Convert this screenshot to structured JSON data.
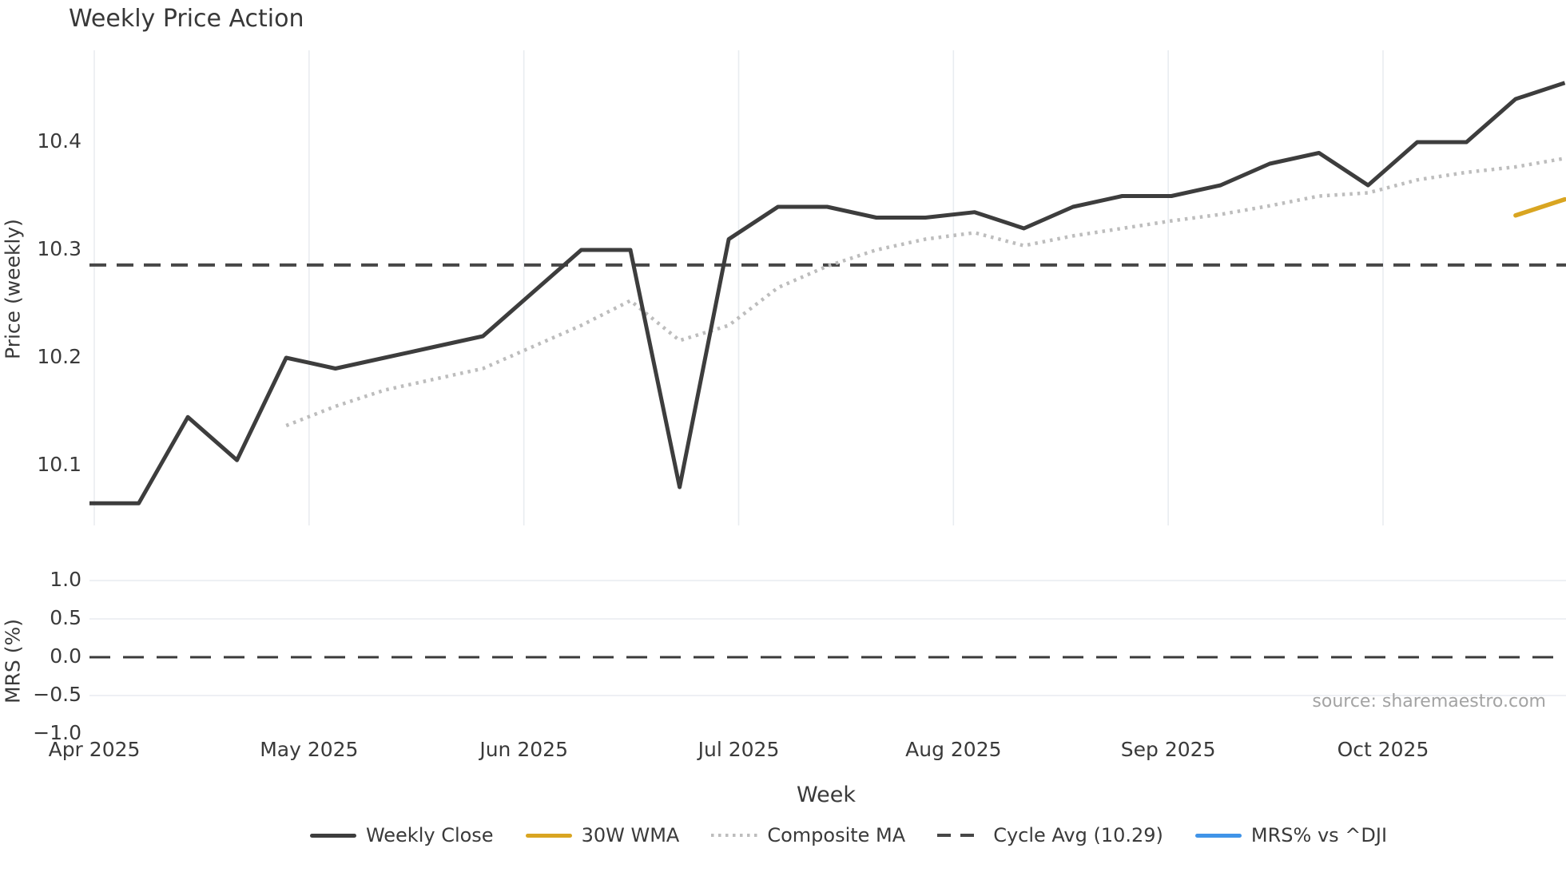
{
  "title": "Weekly Price Action",
  "source": "source: sharemaestro.com",
  "x_axis": {
    "label": "Week",
    "tick_labels": [
      "Apr 2025",
      "May 2025",
      "Jun 2025",
      "Jul 2025",
      "Aug 2025",
      "Sep 2025",
      "Oct 2025"
    ]
  },
  "price_panel": {
    "ylabel": "Price (weekly)",
    "ticks": [
      {
        "label": "10.4",
        "value": 10.4
      },
      {
        "label": "10.3",
        "value": 10.3
      },
      {
        "label": "10.2",
        "value": 10.2
      },
      {
        "label": "10.1",
        "value": 10.1
      }
    ]
  },
  "mrs_panel": {
    "ylabel": "MRS (%)",
    "ticks": [
      {
        "label": "1.0",
        "value": 1.0
      },
      {
        "label": "0.5",
        "value": 0.5
      },
      {
        "label": "0.0",
        "value": 0.0
      },
      {
        "label": "−0.5",
        "value": -0.5
      },
      {
        "label": "−1.0",
        "value": -1.0
      }
    ]
  },
  "legend": {
    "items": [
      {
        "label": "Weekly Close",
        "style": "solid",
        "color": "#3d3d3d"
      },
      {
        "label": "30W WMA",
        "style": "solid",
        "color": "#d9a521"
      },
      {
        "label": "Composite MA",
        "style": "dotted",
        "color": "#bdbdbd"
      },
      {
        "label": "Cycle Avg (10.29)",
        "style": "dashed",
        "color": "#474747"
      },
      {
        "label": "MRS% vs ^DJI",
        "style": "solid",
        "color": "#4094e8"
      }
    ]
  },
  "colors": {
    "weekly_close": "#3d3d3d",
    "wma_30w": "#d9a521",
    "composite_ma": "#bdbdbd",
    "cycle_avg": "#474747",
    "mrs_line": "#4094e8",
    "gridline": "#e9ecf0",
    "zero_dash": "#3a3a3a"
  },
  "chart_data": [
    {
      "type": "line",
      "panel": "price",
      "title": "Weekly Price Action",
      "xlabel": "Week",
      "ylabel": "Price (weekly)",
      "x_unit": "week_index",
      "x": [
        0,
        1,
        2,
        3,
        4,
        5,
        6,
        7,
        8,
        9,
        10,
        11,
        12,
        13,
        14,
        15,
        16,
        17,
        18,
        19,
        20,
        21,
        22,
        23,
        24,
        25,
        26,
        27,
        28,
        29,
        30
      ],
      "month_ticks": [
        "Apr 2025",
        "May 2025",
        "Jun 2025",
        "Jul 2025",
        "Aug 2025",
        "Sep 2025",
        "Oct 2025"
      ],
      "month_tick_week_positions": [
        0.1,
        4.45,
        8.82,
        13.19,
        17.56,
        21.93,
        26.3
      ],
      "ylim": [
        10.04,
        10.49
      ],
      "grid": "vertical-months-only",
      "series": [
        {
          "name": "Weekly Close",
          "style": "solid",
          "values": [
            10.065,
            10.065,
            10.145,
            10.105,
            10.2,
            10.19,
            10.2,
            10.21,
            10.22,
            10.26,
            10.3,
            10.3,
            10.08,
            10.31,
            10.34,
            10.34,
            10.33,
            10.33,
            10.335,
            10.32,
            10.34,
            10.35,
            10.35,
            10.36,
            10.38,
            10.39,
            10.36,
            10.4,
            10.4,
            10.44,
            10.455
          ]
        },
        {
          "name": "30W WMA",
          "style": "solid",
          "values": [
            null,
            null,
            null,
            null,
            null,
            null,
            null,
            null,
            null,
            null,
            null,
            null,
            null,
            null,
            null,
            null,
            null,
            null,
            null,
            null,
            null,
            null,
            null,
            null,
            null,
            null,
            null,
            null,
            null,
            10.332,
            10.347
          ]
        },
        {
          "name": "Composite MA",
          "style": "dotted",
          "values": [
            null,
            null,
            null,
            null,
            10.137,
            10.155,
            10.17,
            10.18,
            10.19,
            10.21,
            10.23,
            10.253,
            10.216,
            10.23,
            10.265,
            10.285,
            10.3,
            10.31,
            10.316,
            10.304,
            10.313,
            10.32,
            10.327,
            10.333,
            10.341,
            10.35,
            10.353,
            10.365,
            10.372,
            10.377,
            10.385
          ]
        },
        {
          "name": "Cycle Avg (10.29)",
          "style": "dashed-hline",
          "value": 10.286
        }
      ]
    },
    {
      "type": "line",
      "panel": "mrs",
      "ylabel": "MRS (%)",
      "ylim": [
        -1.25,
        1.25
      ],
      "yticks": [
        1.0,
        0.5,
        0.0,
        -0.5,
        -1.0
      ],
      "grid": "horizontal",
      "zero_line": {
        "style": "dashed",
        "value": 0.0
      },
      "series": [
        {
          "name": "MRS% vs ^DJI",
          "style": "solid",
          "values": [],
          "note": "no points visible in current view"
        }
      ]
    }
  ]
}
